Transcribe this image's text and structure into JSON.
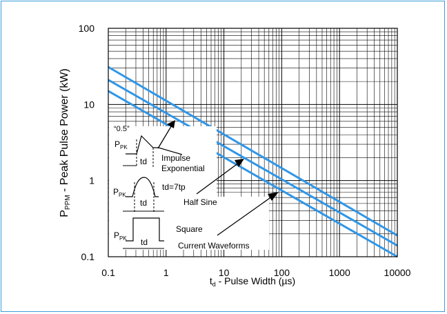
{
  "colors": {
    "frame": "#3a9bd6",
    "series": "#2f96e8",
    "grid": "#000000"
  },
  "chart_data": {
    "type": "line",
    "xscale": "log",
    "yscale": "log",
    "grid": true,
    "xlim": [
      0.1,
      10000
    ],
    "ylim": [
      0.1,
      100
    ],
    "xticks": [
      "0.1",
      "1",
      "10",
      "100",
      "1000",
      "10000"
    ],
    "yticks": [
      "0.1",
      "1",
      "10",
      "100"
    ],
    "xlabel": {
      "main": "t",
      "sub": "d",
      "rest": " - Pulse Width (µs)"
    },
    "ylabel": {
      "main": "P",
      "sub": "PPM",
      "rest": " - Peak Pulse Power (kW)"
    },
    "series": [
      {
        "x": [
          0.1,
          10000
        ],
        "values": [
          31,
          0.19
        ]
      },
      {
        "x": [
          0.1,
          10000
        ],
        "values": [
          21,
          0.14
        ]
      },
      {
        "x": [
          0.1,
          10000
        ],
        "values": [
          15,
          0.1
        ]
      }
    ],
    "annotations": {
      "half": "“0.5”",
      "ppk1_main": "P",
      "ppk1_sub": "PK",
      "td1": "td",
      "impulse": "Impulse",
      "exponential": "Exponential",
      "ppk2_main": "P",
      "ppk2_sub": "PK",
      "td2": "td",
      "td7tp": "td=7tp",
      "half_sine": "Half Sine",
      "ppk3_main": "P",
      "ppk3_sub": "PK",
      "td3": "td",
      "square": "Square",
      "current_waveforms": "Current Waveforms"
    }
  }
}
